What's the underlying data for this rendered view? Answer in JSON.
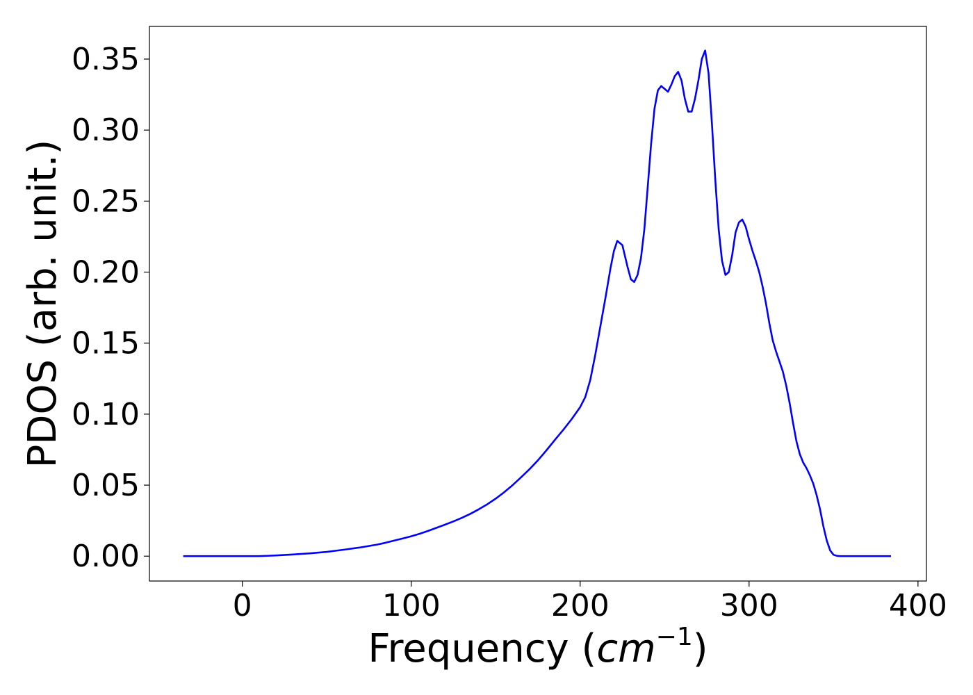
{
  "chart_data": {
    "type": "line",
    "title": "",
    "xlabel": "Frequency (",
    "xlabel_math": "cm",
    "xlabel_sup": "−1",
    "xlabel_close": ")",
    "ylabel": "PDOS (arb. unit.)",
    "xlim": [
      -55,
      405
    ],
    "ylim": [
      -0.0175,
      0.373
    ],
    "grid": false,
    "x_ticks": [
      0,
      100,
      200,
      300,
      400
    ],
    "x_tick_labels": [
      "0",
      "100",
      "200",
      "300",
      "400"
    ],
    "y_ticks": [
      0.0,
      0.05,
      0.1,
      0.15,
      0.2,
      0.25,
      0.3,
      0.35
    ],
    "y_tick_labels": [
      "0.00",
      "0.05",
      "0.10",
      "0.15",
      "0.20",
      "0.25",
      "0.30",
      "0.35"
    ],
    "series": [
      {
        "color": "#0000ff",
        "x": [
          -35,
          -20,
          -10,
          0,
          10,
          20,
          30,
          40,
          50,
          55,
          60,
          70,
          80,
          85,
          90,
          95,
          100,
          105,
          110,
          115,
          120,
          125,
          130,
          135,
          140,
          145,
          150,
          155,
          160,
          165,
          170,
          175,
          180,
          185,
          190,
          195,
          200,
          203,
          206,
          209,
          212,
          215,
          218,
          220,
          222,
          225,
          228,
          230,
          232,
          234,
          236,
          238,
          240,
          242,
          244,
          246,
          248,
          250,
          252,
          254,
          256,
          258,
          260,
          262,
          264,
          266,
          268,
          270,
          272,
          274,
          276,
          278,
          280,
          282,
          284,
          286,
          288,
          290,
          292,
          294,
          296,
          298,
          300,
          302,
          304,
          306,
          308,
          310,
          312,
          314,
          316,
          318,
          320,
          322,
          324,
          326,
          328,
          330,
          332,
          334,
          336,
          338,
          340,
          342,
          344,
          346,
          348,
          350,
          352,
          354,
          356,
          360,
          370,
          384
        ],
        "y": [
          0.0,
          0.0,
          0.0,
          0.0,
          0.0,
          0.0005,
          0.0012,
          0.002,
          0.003,
          0.0038,
          0.0045,
          0.0062,
          0.0082,
          0.0095,
          0.011,
          0.0125,
          0.014,
          0.0158,
          0.0178,
          0.02,
          0.0222,
          0.0245,
          0.027,
          0.0298,
          0.033,
          0.0365,
          0.0405,
          0.045,
          0.05,
          0.0555,
          0.0612,
          0.0675,
          0.0745,
          0.0818,
          0.089,
          0.0965,
          0.105,
          0.112,
          0.124,
          0.142,
          0.162,
          0.182,
          0.203,
          0.215,
          0.222,
          0.219,
          0.204,
          0.195,
          0.193,
          0.198,
          0.21,
          0.23,
          0.26,
          0.29,
          0.315,
          0.328,
          0.331,
          0.329,
          0.327,
          0.332,
          0.338,
          0.341,
          0.335,
          0.322,
          0.313,
          0.313,
          0.322,
          0.335,
          0.35,
          0.356,
          0.34,
          0.305,
          0.265,
          0.23,
          0.208,
          0.198,
          0.2,
          0.212,
          0.228,
          0.235,
          0.237,
          0.232,
          0.223,
          0.215,
          0.208,
          0.2,
          0.19,
          0.178,
          0.164,
          0.152,
          0.144,
          0.137,
          0.13,
          0.12,
          0.108,
          0.094,
          0.081,
          0.072,
          0.066,
          0.062,
          0.057,
          0.051,
          0.043,
          0.033,
          0.021,
          0.011,
          0.004,
          0.001,
          0.0002,
          0.0,
          0.0,
          0.0,
          0.0,
          0.0
        ]
      }
    ]
  }
}
